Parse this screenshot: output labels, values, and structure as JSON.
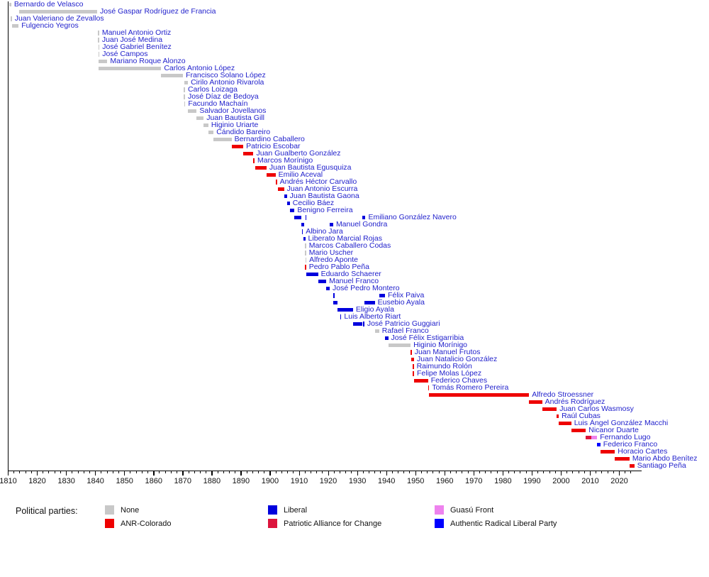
{
  "chart_data": {
    "type": "timeline-bar",
    "title": "",
    "legend_title": "Political parties:",
    "x_axis": {
      "min": 1810,
      "max": 2025,
      "major_ticks": [
        1810,
        1820,
        1830,
        1840,
        1850,
        1860,
        1870,
        1880,
        1890,
        1900,
        1910,
        1920,
        1930,
        1940,
        1950,
        1960,
        1970,
        1980,
        1990,
        2000,
        2010,
        2020
      ],
      "minor_tick_step": 2,
      "minor_tick_end": 2024
    },
    "parties": [
      {
        "id": "none",
        "label": "None",
        "color": "#c8c8c8"
      },
      {
        "id": "colorado",
        "label": "ANR-Colorado",
        "color": "#ee0000"
      },
      {
        "id": "liberal",
        "label": "Liberal",
        "color": "#0000dd"
      },
      {
        "id": "pac",
        "label": "Patriotic Alliance for Change",
        "color": "#dc143c"
      },
      {
        "id": "guasu",
        "label": "Guasú Front",
        "color": "#ee82ee"
      },
      {
        "id": "arlp",
        "label": "Authentic Radical Liberal Party",
        "color": "#0000ff"
      }
    ],
    "label_color": "#2222cc",
    "presidents": [
      {
        "name": "Bernardo de Velasco",
        "terms": [
          [
            1810.4,
            1811.2,
            "none"
          ]
        ]
      },
      {
        "name": "José Gaspar Rodríguez de Francia",
        "terms": [
          [
            1814.0,
            1840.7,
            "none"
          ]
        ]
      },
      {
        "name": "Juan Valeriano de Zevallos",
        "terms": [
          [
            1811.0,
            1811.4,
            "none"
          ]
        ]
      },
      {
        "name": "Fulgencio Yegros",
        "terms": [
          [
            1811.5,
            1813.7,
            "none"
          ]
        ]
      },
      {
        "name": "Manuel Antonio Ortiz",
        "terms": [
          [
            1841.0,
            1841.3,
            "none"
          ]
        ]
      },
      {
        "name": "Juan José Medina",
        "terms": [
          [
            1841.0,
            1841.3,
            "none"
          ]
        ]
      },
      {
        "name": "José Gabriel Benítez",
        "terms": [
          [
            1841.1,
            1841.4,
            "none"
          ]
        ]
      },
      {
        "name": "José Campos",
        "terms": [
          [
            1841.1,
            1841.4,
            "none"
          ]
        ]
      },
      {
        "name": "Mariano Roque Alonzo",
        "terms": [
          [
            1841.2,
            1844.2,
            "none"
          ]
        ]
      },
      {
        "name": "Carlos Antonio López",
        "terms": [
          [
            1841.2,
            1862.7,
            "none"
          ]
        ]
      },
      {
        "name": "Francisco Solano López",
        "terms": [
          [
            1862.7,
            1870.2,
            "none"
          ]
        ]
      },
      {
        "name": "Cirilo Antonio Rivarola",
        "terms": [
          [
            1870.6,
            1871.9,
            "none"
          ]
        ]
      },
      {
        "name": "Carlos Loizaga",
        "terms": [
          [
            1870.5,
            1870.8,
            "none"
          ]
        ]
      },
      {
        "name": "José Díaz de Bedoya",
        "terms": [
          [
            1870.5,
            1870.8,
            "none"
          ]
        ]
      },
      {
        "name": "Facundo Machaín",
        "terms": [
          [
            1870.6,
            1870.9,
            "none"
          ]
        ]
      },
      {
        "name": "Salvador Jovellanos",
        "terms": [
          [
            1871.9,
            1874.9,
            "none"
          ]
        ]
      },
      {
        "name": "Juan Bautista Gill",
        "terms": [
          [
            1874.9,
            1877.3,
            "none"
          ]
        ]
      },
      {
        "name": "Higinio Uriarte",
        "terms": [
          [
            1877.3,
            1878.9,
            "none"
          ]
        ]
      },
      {
        "name": "Cándido Bareiro",
        "terms": [
          [
            1878.9,
            1880.7,
            "none"
          ]
        ]
      },
      {
        "name": "Bernardino Caballero",
        "terms": [
          [
            1880.7,
            1886.9,
            "none"
          ]
        ]
      },
      {
        "name": "Patricio Escobar",
        "terms": [
          [
            1886.9,
            1890.9,
            "colorado"
          ]
        ]
      },
      {
        "name": "Juan Gualberto González",
        "terms": [
          [
            1890.9,
            1894.4,
            "colorado"
          ]
        ]
      },
      {
        "name": "Marcos Morínigo",
        "terms": [
          [
            1894.4,
            1894.9,
            "colorado"
          ]
        ]
      },
      {
        "name": "Juan Bautista Egusquiza",
        "terms": [
          [
            1894.9,
            1898.9,
            "colorado"
          ]
        ]
      },
      {
        "name": "Emilio Aceval",
        "terms": [
          [
            1898.9,
            1902.0,
            "colorado"
          ]
        ]
      },
      {
        "name": "Andrés Héctor Carvallo",
        "terms": [
          [
            1902.1,
            1902.5,
            "colorado"
          ]
        ]
      },
      {
        "name": "Juan Antonio Escurra",
        "terms": [
          [
            1902.9,
            1904.9,
            "colorado"
          ]
        ]
      },
      {
        "name": "Juan Bautista Gaona",
        "terms": [
          [
            1904.9,
            1905.9,
            "liberal"
          ]
        ]
      },
      {
        "name": "Cecilio Báez",
        "terms": [
          [
            1905.9,
            1906.9,
            "liberal"
          ]
        ]
      },
      {
        "name": "Benigno Ferreira",
        "terms": [
          [
            1906.9,
            1908.5,
            "liberal"
          ]
        ]
      },
      {
        "name": "Emiliano González Navero",
        "terms": [
          [
            1908.5,
            1910.9,
            "liberal"
          ],
          [
            1912.2,
            1912.6,
            "liberal"
          ],
          [
            1931.8,
            1932.9,
            "liberal"
          ]
        ]
      },
      {
        "name": "Manuel Gondra",
        "terms": [
          [
            1910.8,
            1911.9,
            "liberal"
          ],
          [
            1920.6,
            1921.8,
            "liberal"
          ]
        ]
      },
      {
        "name": "Albino Jara",
        "terms": [
          [
            1911.0,
            1911.5,
            "liberal"
          ]
        ]
      },
      {
        "name": "Liberato Marcial Rojas",
        "terms": [
          [
            1911.5,
            1912.2,
            "liberal"
          ]
        ]
      },
      {
        "name": "Marcos Caballero Codas",
        "terms": [
          [
            1912.1,
            1912.4,
            "none"
          ]
        ]
      },
      {
        "name": "Mario Uscher",
        "terms": [
          [
            1912.1,
            1912.4,
            "none"
          ]
        ]
      },
      {
        "name": "Alfredo Aponte",
        "terms": [
          [
            1912.2,
            1912.5,
            "none"
          ]
        ]
      },
      {
        "name": "Pedro Pablo Peña",
        "terms": [
          [
            1912.1,
            1912.5,
            "colorado"
          ]
        ]
      },
      {
        "name": "Eduardo Schaerer",
        "terms": [
          [
            1912.6,
            1916.6,
            "liberal"
          ]
        ]
      },
      {
        "name": "Manuel Franco",
        "terms": [
          [
            1916.6,
            1919.4,
            "liberal"
          ]
        ]
      },
      {
        "name": "José Pedro Montero",
        "terms": [
          [
            1919.4,
            1920.6,
            "liberal"
          ]
        ]
      },
      {
        "name": "Félix Paiva",
        "terms": [
          [
            1921.8,
            1922.1,
            "liberal"
          ],
          [
            1937.6,
            1939.6,
            "liberal"
          ]
        ]
      },
      {
        "name": "Eusebio Ayala",
        "terms": [
          [
            1921.8,
            1923.3,
            "liberal"
          ],
          [
            1932.6,
            1936.1,
            "liberal"
          ]
        ]
      },
      {
        "name": "Eligio Ayala",
        "terms": [
          [
            1923.3,
            1928.6,
            "liberal"
          ]
        ]
      },
      {
        "name": "Luis Alberto Riart",
        "terms": [
          [
            1924.2,
            1924.6,
            "liberal"
          ]
        ]
      },
      {
        "name": "José Patricio Guggiari",
        "terms": [
          [
            1928.6,
            1931.8,
            "liberal"
          ],
          [
            1932.1,
            1932.6,
            "liberal"
          ]
        ]
      },
      {
        "name": "Rafael Franco",
        "terms": [
          [
            1936.1,
            1937.6,
            "none"
          ]
        ]
      },
      {
        "name": "José Félix Estigarribia",
        "terms": [
          [
            1939.6,
            1940.7,
            "liberal"
          ]
        ]
      },
      {
        "name": "Higinio Morínigo",
        "terms": [
          [
            1940.7,
            1948.4,
            "none"
          ]
        ]
      },
      {
        "name": "Juan Manuel Frutos",
        "terms": [
          [
            1948.4,
            1948.7,
            "colorado"
          ]
        ]
      },
      {
        "name": "Juan Natalicio González",
        "terms": [
          [
            1948.6,
            1949.6,
            "colorado"
          ]
        ]
      },
      {
        "name": "Raimundo Rolón",
        "terms": [
          [
            1949.1,
            1949.4,
            "colorado"
          ]
        ]
      },
      {
        "name": "Felipe Molas López",
        "terms": [
          [
            1949.2,
            1949.6,
            "colorado"
          ]
        ]
      },
      {
        "name": "Federico Chaves",
        "terms": [
          [
            1949.7,
            1954.4,
            "colorado"
          ]
        ]
      },
      {
        "name": "Tomás Romero Pereira",
        "terms": [
          [
            1954.4,
            1954.7,
            "colorado"
          ]
        ]
      },
      {
        "name": "Alfredo Stroessner",
        "terms": [
          [
            1954.6,
            1989.1,
            "colorado"
          ]
        ]
      },
      {
        "name": "Andrés Rodríguez",
        "terms": [
          [
            1989.1,
            1993.6,
            "colorado"
          ]
        ]
      },
      {
        "name": "Juan Carlos Wasmosy",
        "terms": [
          [
            1993.6,
            1998.6,
            "colorado"
          ]
        ]
      },
      {
        "name": "Raúl Cubas",
        "terms": [
          [
            1998.6,
            1999.3,
            "colorado"
          ]
        ]
      },
      {
        "name": "Luis Ángel González Macchi",
        "terms": [
          [
            1999.3,
            2003.6,
            "colorado"
          ]
        ]
      },
      {
        "name": "Nicanor Duarte",
        "terms": [
          [
            2003.6,
            2008.6,
            "colorado"
          ]
        ]
      },
      {
        "name": "Fernando Lugo",
        "terms": [
          [
            2008.6,
            2010.5,
            "pac"
          ],
          [
            2010.5,
            2012.5,
            "guasu"
          ]
        ]
      },
      {
        "name": "Federico Franco",
        "terms": [
          [
            2012.5,
            2013.6,
            "arlp"
          ]
        ]
      },
      {
        "name": "Horacio Cartes",
        "terms": [
          [
            2013.6,
            2018.6,
            "colorado"
          ]
        ]
      },
      {
        "name": "Mario Abdo Benítez",
        "terms": [
          [
            2018.6,
            2023.6,
            "colorado"
          ]
        ]
      },
      {
        "name": "Santiago Peña",
        "terms": [
          [
            2023.6,
            2025.3,
            "colorado"
          ]
        ]
      }
    ]
  }
}
